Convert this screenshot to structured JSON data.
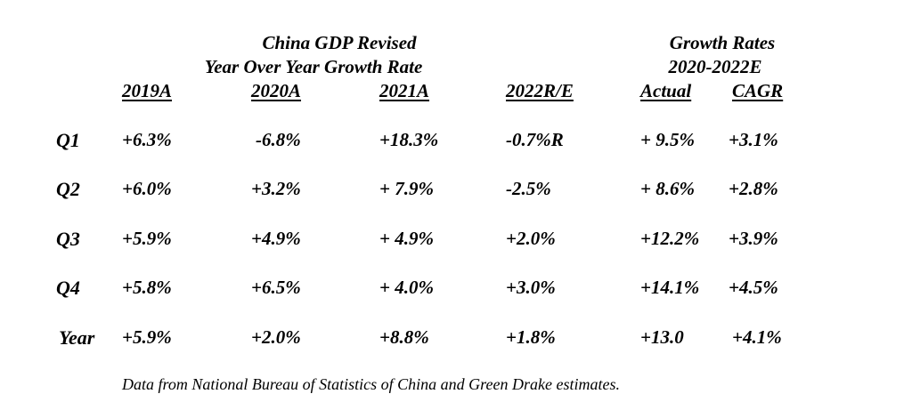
{
  "titles": {
    "main_line1": "China GDP Revised",
    "main_line2": "Year Over Year Growth Rate",
    "growth_line1": "Growth Rates",
    "growth_line2": "2020-2022E"
  },
  "columns": [
    "2019A",
    "2020A",
    "2021A",
    "2022R/E",
    "Actual",
    "CAGR"
  ],
  "rows": [
    {
      "label": "Q1",
      "cells": [
        "+6.3%",
        "-6.8%",
        "+18.3%",
        "-0.7%R",
        "+ 9.5%",
        "+3.1%"
      ]
    },
    {
      "label": "Q2",
      "cells": [
        "+6.0%",
        "+3.2%",
        "+ 7.9%",
        "-2.5%",
        "+ 8.6%",
        "+2.8%"
      ]
    },
    {
      "label": "Q3",
      "cells": [
        "+5.9%",
        "+4.9%",
        "+ 4.9%",
        "+2.0%",
        "+12.2%",
        "+3.9%"
      ]
    },
    {
      "label": "Q4",
      "cells": [
        "+5.8%",
        "+6.5%",
        "+ 4.0%",
        "+3.0%",
        "+14.1%",
        "+4.5%"
      ]
    },
    {
      "label": "Year",
      "cells": [
        "+5.9%",
        "+2.0%",
        "+8.8%",
        "+1.8%",
        "+13.0",
        "+4.1%"
      ]
    }
  ],
  "footnote": "Data from National Bureau of Statistics of China and Green Drake estimates."
}
